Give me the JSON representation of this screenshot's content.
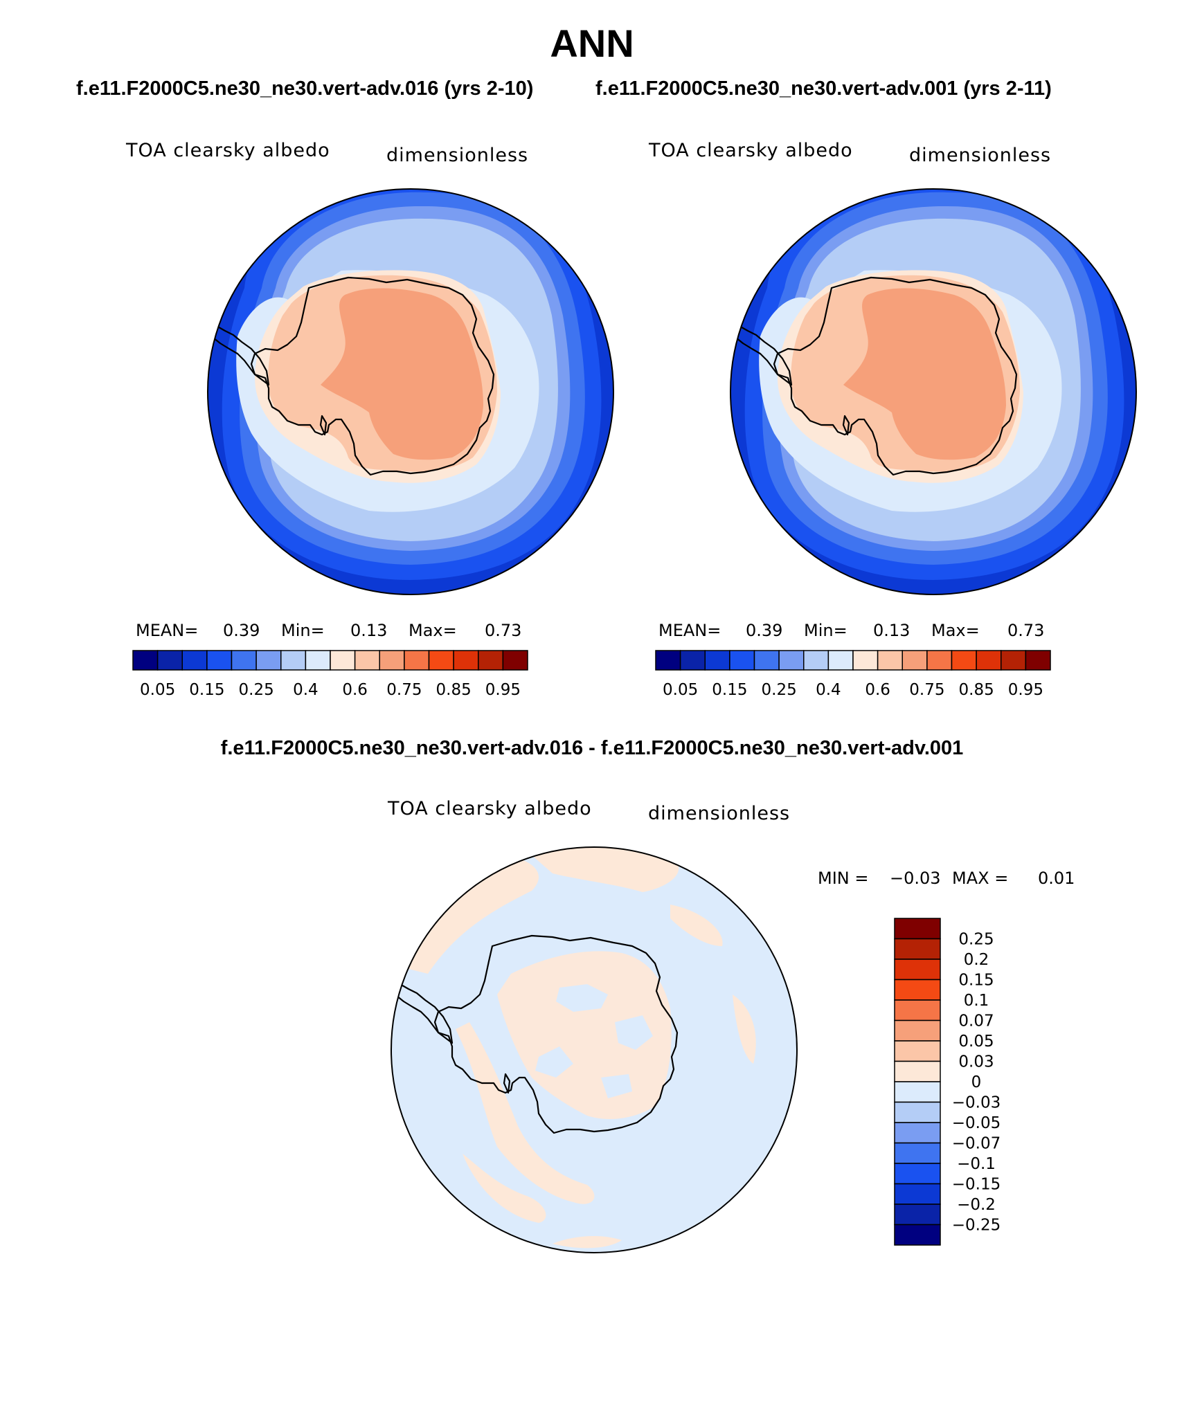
{
  "figure": {
    "title": "ANN",
    "subtitle_left": "f.e11.F2000C5.ne30_ne30.vert-adv.016 (yrs 2-10)",
    "subtitle_right": "f.e11.F2000C5.ne30_ne30.vert-adv.001 (yrs 2-11)",
    "diff_title": "f.e11.F2000C5.ne30_ne30.vert-adv.016 - f.e11.F2000C5.ne30_ne30.vert-adv.001"
  },
  "panels": [
    {
      "id": "case1",
      "variable": "TOA clearsky albedo",
      "units": "dimensionless",
      "mean_label": "MEAN=",
      "mean_value": "0.39",
      "min_label": "Min=",
      "min_value": "0.13",
      "max_label": "Max=",
      "max_value": "0.73"
    },
    {
      "id": "case2",
      "variable": "TOA clearsky albedo",
      "units": "dimensionless",
      "mean_label": "MEAN=",
      "mean_value": "0.39",
      "min_label": "Min=",
      "min_value": "0.13",
      "max_label": "Max=",
      "max_value": "0.73"
    },
    {
      "id": "difference",
      "variable": "TOA clearsky albedo",
      "units": "dimensionless",
      "min_label": "MIN =",
      "min_value": "−0.03",
      "max_label": "MAX =",
      "max_value": "0.01"
    }
  ],
  "chart_data": [
    {
      "type": "heatmap",
      "projection": "south polar stereographic",
      "title": "TOA clearsky albedo",
      "units": "dimensionless",
      "mean": 0.39,
      "min": 0.13,
      "max": 0.73,
      "colorbar_ticks": [
        "0.05",
        "0.15",
        "0.25",
        "0.4",
        "0.6",
        "0.75",
        "0.85",
        "0.95"
      ],
      "colorbar_colors": [
        "#000080",
        "#0a23a8",
        "#0c39d4",
        "#1a52f0",
        "#3f74f0",
        "#7a9df2",
        "#b4cdf6",
        "#dcebfc",
        "#fde8d8",
        "#fbc6a8",
        "#f6a07a",
        "#f57547",
        "#f44a14",
        "#de3208",
        "#b42205",
        "#7f0000"
      ]
    },
    {
      "type": "heatmap",
      "projection": "south polar stereographic",
      "title": "TOA clearsky albedo",
      "units": "dimensionless",
      "mean": 0.39,
      "min": 0.13,
      "max": 0.73,
      "colorbar_ticks": [
        "0.05",
        "0.15",
        "0.25",
        "0.4",
        "0.6",
        "0.75",
        "0.85",
        "0.95"
      ],
      "colorbar_colors": [
        "#000080",
        "#0a23a8",
        "#0c39d4",
        "#1a52f0",
        "#3f74f0",
        "#7a9df2",
        "#b4cdf6",
        "#dcebfc",
        "#fde8d8",
        "#fbc6a8",
        "#f6a07a",
        "#f57547",
        "#f44a14",
        "#de3208",
        "#b42205",
        "#7f0000"
      ]
    },
    {
      "type": "heatmap",
      "projection": "south polar stereographic",
      "title": "TOA clearsky albedo",
      "units": "dimensionless",
      "min": -0.03,
      "max": 0.01,
      "colorbar_ticks": [
        "0.25",
        "0.2",
        "0.15",
        "0.1",
        "0.07",
        "0.05",
        "0.03",
        "0",
        "−0.03",
        "−0.05",
        "−0.07",
        "−0.1",
        "−0.15",
        "−0.2",
        "−0.25"
      ],
      "colorbar_colors": [
        "#7f0000",
        "#b42205",
        "#de3208",
        "#f44a14",
        "#f57547",
        "#f6a07a",
        "#fbc6a8",
        "#fde8d8",
        "#dcebfc",
        "#b4cdf6",
        "#7a9df2",
        "#3f74f0",
        "#1a52f0",
        "#0c39d4",
        "#0a23a8",
        "#000080"
      ]
    }
  ]
}
